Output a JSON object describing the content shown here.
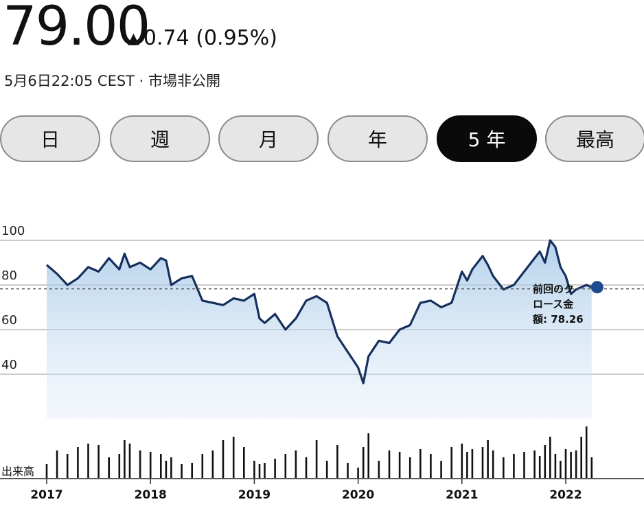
{
  "quote": {
    "price": "79.00",
    "change": "0.74 (0.95%)",
    "change_direction": "up",
    "meta": "5月6日22:05 CEST · 市場非公開"
  },
  "range_tabs": [
    {
      "label": "日",
      "active": false
    },
    {
      "label": "週",
      "active": false
    },
    {
      "label": "月",
      "active": false
    },
    {
      "label": "年",
      "active": false
    },
    {
      "label": "5 年",
      "active": true
    },
    {
      "label": "最高",
      "active": false
    }
  ],
  "chart_data": {
    "type": "area",
    "xlabels": [
      "2017",
      "2018",
      "2019",
      "2020",
      "2021",
      "2022"
    ],
    "yticks": [
      100,
      80,
      60,
      40
    ],
    "ylim": [
      20,
      100
    ],
    "grid": true,
    "volume_label": "出来高",
    "previous_close_label_lines": [
      "前回のク",
      "ロース金",
      "額: 78.26"
    ],
    "previous_close": 78.26,
    "x": [
      2017.0,
      2017.1,
      2017.2,
      2017.3,
      2017.4,
      2017.5,
      2017.6,
      2017.7,
      2017.75,
      2017.8,
      2017.9,
      2018.0,
      2018.1,
      2018.15,
      2018.2,
      2018.3,
      2018.4,
      2018.5,
      2018.6,
      2018.7,
      2018.8,
      2018.9,
      2019.0,
      2019.05,
      2019.1,
      2019.2,
      2019.3,
      2019.4,
      2019.5,
      2019.6,
      2019.7,
      2019.8,
      2019.9,
      2020.0,
      2020.05,
      2020.1,
      2020.2,
      2020.3,
      2020.4,
      2020.5,
      2020.6,
      2020.7,
      2020.8,
      2020.9,
      2021.0,
      2021.05,
      2021.1,
      2021.2,
      2021.25,
      2021.3,
      2021.4,
      2021.5,
      2021.6,
      2021.7,
      2021.75,
      2021.8,
      2021.85,
      2021.9,
      2021.95,
      2022.0,
      2022.05,
      2022.1,
      2022.15,
      2022.2,
      2022.25
    ],
    "values": [
      89,
      85,
      80,
      83,
      88,
      86,
      92,
      87,
      94,
      88,
      90,
      87,
      92,
      91,
      80,
      83,
      84,
      73,
      72,
      71,
      74,
      73,
      76,
      65,
      63,
      67,
      60,
      65,
      73,
      75,
      72,
      57,
      50,
      43,
      36,
      48,
      55,
      54,
      60,
      62,
      72,
      73,
      70,
      72,
      86,
      82,
      87,
      93,
      89,
      84,
      78,
      80,
      86,
      92,
      95,
      90,
      100,
      97,
      88,
      84,
      76,
      78,
      79,
      80,
      79
    ],
    "volume": [
      20,
      40,
      35,
      45,
      50,
      48,
      30,
      35,
      55,
      50,
      40,
      38,
      35,
      25,
      30,
      20,
      22,
      35,
      40,
      55,
      60,
      45,
      25,
      20,
      22,
      28,
      35,
      40,
      30,
      55,
      25,
      48,
      22,
      15,
      45,
      65,
      25,
      40,
      38,
      30,
      42,
      35,
      25,
      45,
      50,
      38,
      42,
      45,
      55,
      40,
      30,
      35,
      38,
      40,
      32,
      48,
      60,
      35,
      25,
      42,
      38,
      40,
      60,
      75,
      30
    ]
  }
}
